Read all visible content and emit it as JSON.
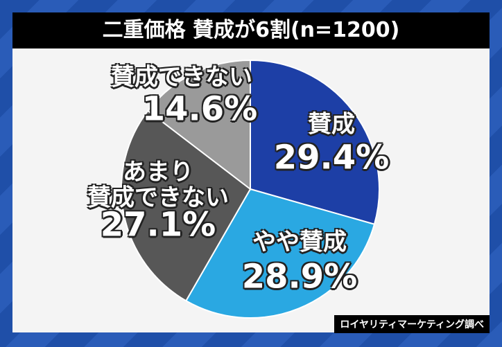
{
  "chart_data": {
    "type": "pie",
    "title": "二重価格 賛成が6割(n=1200)",
    "categories": [
      "賛成",
      "やや賛成",
      "あまり\n賛成できない",
      "賛成できない"
    ],
    "values": [
      29.4,
      28.9,
      27.1,
      14.6
    ],
    "value_labels": [
      "29.4%",
      "28.9%",
      "27.1%",
      "14.6%"
    ],
    "colors": [
      "#1d3fa6",
      "#2aa8e2",
      "#575757",
      "#9a9a9a"
    ],
    "source": "ロイヤリティマーケティング調べ"
  }
}
